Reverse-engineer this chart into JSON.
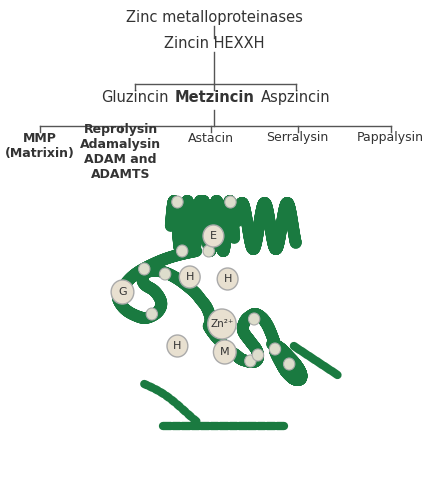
{
  "bg_color": "#ffffff",
  "green": "#1a7a40",
  "circle_face": "#e8e0d0",
  "circle_edge": "#aaaaaa",
  "title_text": "Zinc metalloproteinases",
  "level1_text": "Zincin HEXXH",
  "level2_labels": [
    "Gluzincin",
    "Metzincin",
    "Aspzincin"
  ],
  "level2_bold": [
    false,
    true,
    false
  ],
  "level3_labels": [
    "MMP\n(Matrixin)",
    "Reprolysin\nAdamalysin\nADAM and\nADAMTS",
    "Astacin",
    "Serralysin",
    "Pappalysin"
  ],
  "level3_bold": [
    true,
    true,
    false,
    false,
    false
  ],
  "font_size_main": 10.5,
  "font_size_small": 9.0,
  "line_color": "#555555"
}
